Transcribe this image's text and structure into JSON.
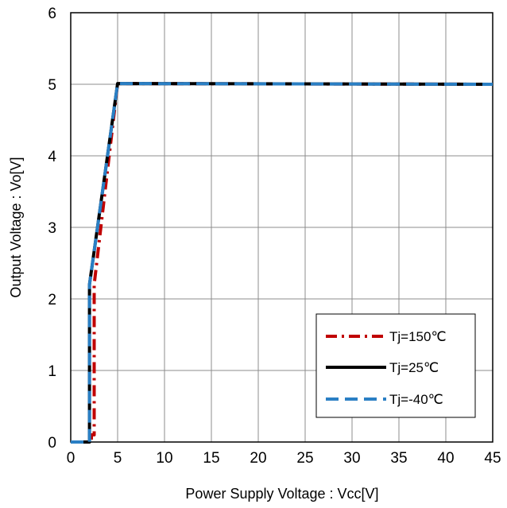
{
  "chart_data": {
    "type": "line",
    "xlabel": "Power Supply Voltage : Vcc[V]",
    "ylabel": "Output Voltage : Vo[V]",
    "xlim": [
      0,
      45
    ],
    "ylim": [
      0,
      6
    ],
    "x_ticks": [
      "0",
      "5",
      "10",
      "15",
      "20",
      "25",
      "30",
      "35",
      "40",
      "45"
    ],
    "y_ticks": [
      "0",
      "1",
      "2",
      "3",
      "4",
      "5",
      "6"
    ],
    "grid": true,
    "legend_position": "bottom-right",
    "series": [
      {
        "name": "Tj=150℃",
        "color": "#c00000",
        "style": "dash-dot",
        "x": [
          0,
          2.2,
          2.2,
          2.5,
          2.5,
          5.0,
          45
        ],
        "y": [
          0,
          0,
          0.1,
          0.1,
          2.2,
          5.01,
          5.0
        ]
      },
      {
        "name": "Tj=25℃",
        "color": "#000000",
        "style": "solid",
        "x": [
          0,
          2.0,
          2.0,
          5.0,
          45
        ],
        "y": [
          0,
          0,
          2.2,
          5.01,
          5.0
        ]
      },
      {
        "name": "Tj=-40℃",
        "color": "#2a7fc4",
        "style": "dashed",
        "x": [
          0,
          2.0,
          2.0,
          5.0,
          45
        ],
        "y": [
          0,
          0,
          2.2,
          5.01,
          5.0
        ]
      }
    ]
  }
}
